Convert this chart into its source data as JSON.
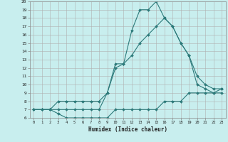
{
  "xlabel": "Humidex (Indice chaleur)",
  "bg_color": "#c8eeee",
  "line_color": "#2d7a7a",
  "grid_color": "#b0b0b0",
  "xlim": [
    -0.5,
    23.5
  ],
  "ylim": [
    6,
    20
  ],
  "xticks": [
    0,
    1,
    2,
    3,
    4,
    5,
    6,
    7,
    8,
    9,
    10,
    11,
    12,
    13,
    14,
    15,
    16,
    17,
    18,
    19,
    20,
    21,
    22,
    23
  ],
  "yticks": [
    6,
    7,
    8,
    9,
    10,
    11,
    12,
    13,
    14,
    15,
    16,
    17,
    18,
    19,
    20
  ],
  "line1_x": [
    0,
    1,
    2,
    3,
    4,
    5,
    6,
    7,
    8,
    9,
    10,
    11,
    12,
    13,
    14,
    15,
    16,
    17,
    18,
    19,
    20,
    21,
    22,
    23
  ],
  "line1_y": [
    7,
    7,
    7,
    6.5,
    6,
    6,
    6,
    6,
    6,
    6,
    7,
    7,
    7,
    7,
    7,
    7,
    8,
    8,
    8,
    9,
    9,
    9,
    9,
    9.5
  ],
  "line2_x": [
    0,
    1,
    2,
    3,
    4,
    5,
    6,
    7,
    8,
    9,
    10,
    11,
    12,
    13,
    14,
    15,
    16,
    17,
    18,
    19,
    20,
    21,
    22,
    23
  ],
  "line2_y": [
    7,
    7,
    7,
    8,
    8,
    8,
    8,
    8,
    8,
    9,
    12,
    12.5,
    13.5,
    15,
    16,
    17,
    18,
    17,
    15,
    13.5,
    11,
    10,
    9.5,
    9.5
  ],
  "line3_x": [
    0,
    1,
    2,
    3,
    4,
    5,
    6,
    7,
    8,
    9,
    10,
    11,
    12,
    13,
    14,
    15,
    16,
    17,
    18,
    19,
    20,
    21,
    22,
    23
  ],
  "line3_y": [
    7,
    7,
    7,
    7,
    7,
    7,
    7,
    7,
    7,
    9,
    12.5,
    12.5,
    16.5,
    19,
    19,
    20,
    18,
    17,
    15,
    13.5,
    10,
    9.5,
    9,
    9
  ]
}
